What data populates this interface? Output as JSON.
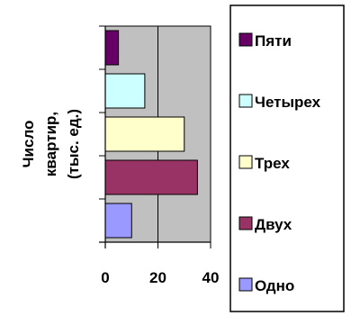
{
  "chart_data": {
    "type": "bar",
    "orientation": "horizontal",
    "title": "",
    "xlabel": "",
    "ylabel_lines": [
      "Число",
      "квартир,",
      "(тыс. ед.)"
    ],
    "xlim": [
      0,
      40
    ],
    "xticks": [
      "0",
      "20",
      "40"
    ],
    "grid": true,
    "legend_position": "right",
    "categories": [
      "Одно",
      "Двух",
      "Трех",
      "Четырех",
      "Пяти"
    ],
    "values": [
      10,
      35,
      30,
      15,
      5
    ],
    "colors": [
      "#9999ff",
      "#993366",
      "#ffffcc",
      "#ccffff",
      "#660066"
    ],
    "plot_background": "#c0c0c0",
    "legend": [
      {
        "label": "Пяти",
        "color": "#660066"
      },
      {
        "label": "Четырех",
        "color": "#ccffff"
      },
      {
        "label": "Трех",
        "color": "#ffffcc"
      },
      {
        "label": "Двух",
        "color": "#993366"
      },
      {
        "label": "Одно",
        "color": "#9999ff"
      }
    ]
  }
}
